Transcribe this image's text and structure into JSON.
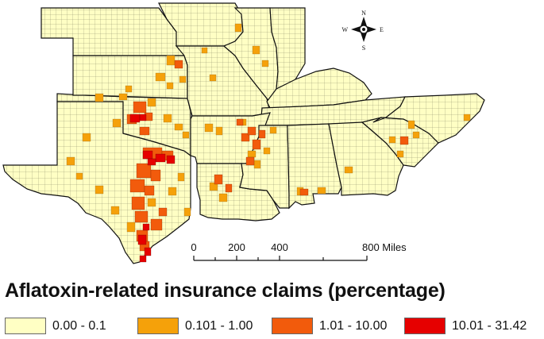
{
  "map": {
    "compass": {
      "n": "N",
      "s": "S",
      "e": "E",
      "w": "W",
      "icon": "compass-rose-icon"
    },
    "scale_bar": {
      "ticks": [
        "0",
        "200",
        "400",
        "800 Miles"
      ]
    }
  },
  "legend": {
    "title": "Aflatoxin-related insurance claims (percentage)",
    "items": [
      {
        "label": "0.00 - 0.1",
        "color": "#ffffc4"
      },
      {
        "label": "0.101 - 1.00",
        "color": "#f5a10a"
      },
      {
        "label": "1.01 - 10.00",
        "color": "#f25b0c"
      },
      {
        "label": "10.01 - 31.42",
        "color": "#e60000"
      }
    ]
  }
}
